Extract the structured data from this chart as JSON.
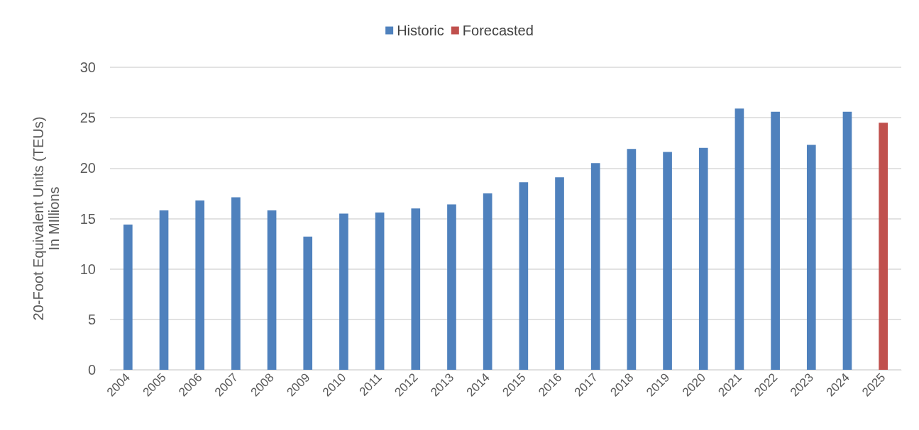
{
  "chart_data": {
    "type": "bar",
    "ylabel": "20-Foot Equivalent Units (TEUs)\nIn MIllions",
    "categories": [
      "2004",
      "2005",
      "2006",
      "2007",
      "2008",
      "2009",
      "2010",
      "2011",
      "2012",
      "2013",
      "2014",
      "2015",
      "2016",
      "2017",
      "2018",
      "2019",
      "2020",
      "2021",
      "2022",
      "2023",
      "2024",
      "2025"
    ],
    "series": [
      {
        "name": "Historic",
        "color": "#4f81bd",
        "values": [
          14.4,
          15.8,
          16.8,
          17.1,
          15.8,
          13.2,
          15.5,
          15.6,
          16.0,
          16.4,
          17.5,
          18.6,
          19.1,
          20.5,
          21.9,
          21.6,
          22.0,
          25.9,
          25.6,
          22.3,
          25.6,
          null
        ]
      },
      {
        "name": "Forecasted",
        "color": "#c0504d",
        "values": [
          null,
          null,
          null,
          null,
          null,
          null,
          null,
          null,
          null,
          null,
          null,
          null,
          null,
          null,
          null,
          null,
          null,
          null,
          null,
          null,
          null,
          24.5
        ]
      }
    ],
    "ylim": [
      0,
      30
    ],
    "yticks": [
      0,
      5,
      10,
      15,
      20,
      25,
      30
    ],
    "grid": "y",
    "legend": "top"
  }
}
